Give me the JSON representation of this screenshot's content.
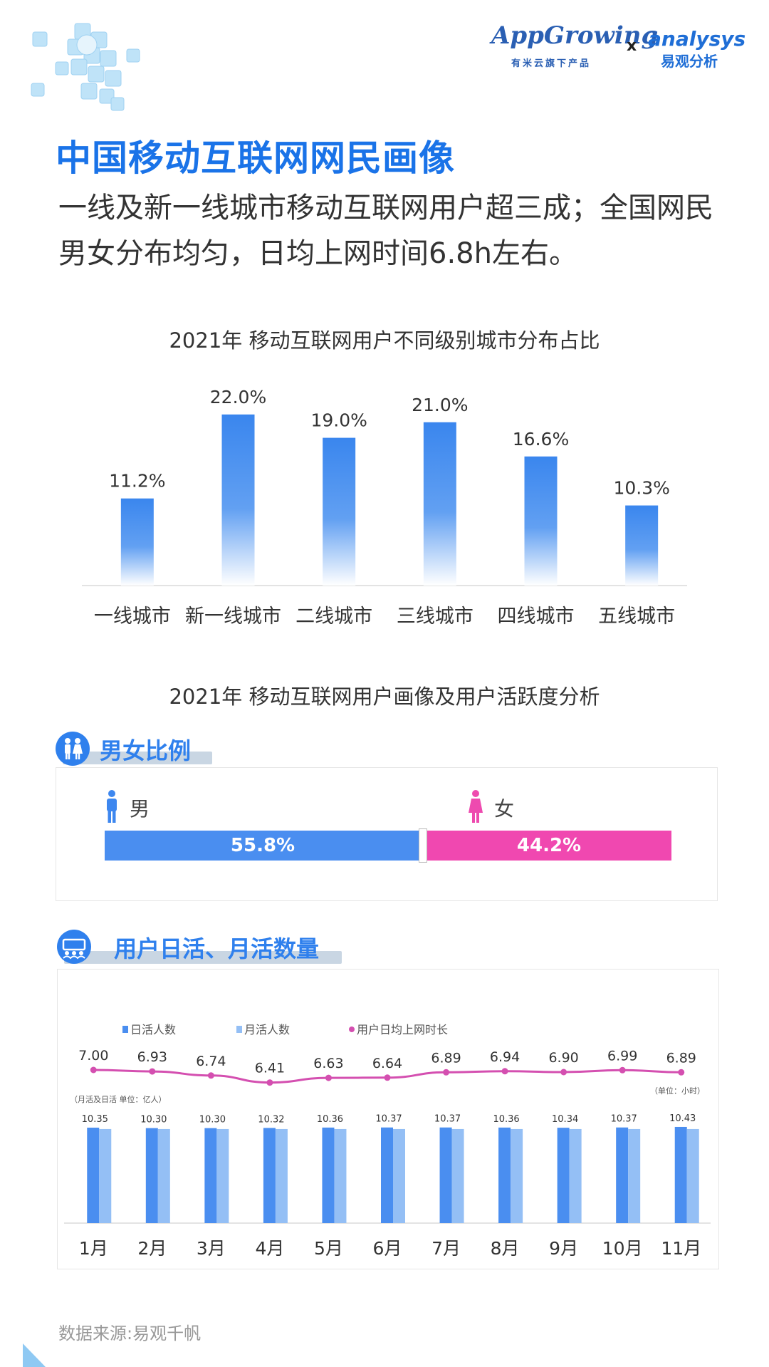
{
  "header": {
    "logo_app_name": "AppGrowing",
    "logo_app_sub": "有米云旗下产品",
    "logo_x": "x",
    "logo_an_name": "analysys",
    "logo_an_sub": "易观分析"
  },
  "title": "中国移动互联网网民画像",
  "subtitle": "一线及新一线城市移动互联网用户超三成；全国网民男女分布均匀，日均上网时间6.8h左右。",
  "colors": {
    "accent": "#1a73e8",
    "male": "#4a8ef0",
    "female": "#f048b0",
    "dau": "#4a8ef0",
    "mau": "#94bff5",
    "line": "#d44fb0"
  },
  "gender_section": {
    "title": "男女比例",
    "male_label": "男",
    "female_label": "女",
    "male_value": 55.8,
    "male_text": "55.8%",
    "female_value": 44.2,
    "female_text": "44.2%"
  },
  "activity_section": {
    "title": "用户日活、月活数量"
  },
  "source": "数据来源:易观千帆",
  "chart_data": [
    {
      "type": "bar",
      "title": "2021年 移动互联网用户不同级别城市分布占比",
      "categories": [
        "一线城市",
        "新一线城市",
        "二线城市",
        "三线城市",
        "四线城市",
        "五线城市"
      ],
      "values": [
        11.2,
        22.0,
        19.0,
        21.0,
        16.6,
        10.3
      ],
      "value_labels": [
        "11.2%",
        "22.0%",
        "19.0%",
        "21.0%",
        "16.6%",
        "10.3%"
      ],
      "unit": "%",
      "ylim": [
        0,
        24
      ]
    },
    {
      "type": "bar",
      "title": "2021年 移动互联网用户画像及用户活跃度分析",
      "categories": [
        "1月",
        "2月",
        "3月",
        "4月",
        "5月",
        "6月",
        "7月",
        "8月",
        "9月",
        "10月",
        "11月"
      ],
      "series": [
        {
          "name": "日活人数",
          "type": "bar",
          "values": [
            10.35,
            10.3,
            10.3,
            10.32,
            10.36,
            10.37,
            10.37,
            10.36,
            10.34,
            10.37,
            10.43
          ]
        },
        {
          "name": "月活人数",
          "type": "bar",
          "values": [
            10.2,
            10.2,
            10.2,
            10.2,
            10.2,
            10.2,
            10.2,
            10.2,
            10.2,
            10.2,
            10.2
          ]
        },
        {
          "name": "用户日均上网时长",
          "type": "line",
          "values": [
            7.0,
            6.93,
            6.74,
            6.41,
            6.63,
            6.64,
            6.89,
            6.94,
            6.9,
            6.99,
            6.89
          ]
        }
      ],
      "bar_value_labels": [
        "10.35",
        "10.30",
        "10.30",
        "10.32",
        "10.36",
        "10.37",
        "10.37",
        "10.36",
        "10.34",
        "10.37",
        "10.43"
      ],
      "line_value_labels": [
        "7.00",
        "6.93",
        "6.74",
        "6.41",
        "6.63",
        "6.64",
        "6.89",
        "6.94",
        "6.90",
        "6.99",
        "6.89"
      ],
      "left_unit_note": "（月活及日活 单位：亿人）",
      "right_unit_note": "（单位：小时）",
      "legend": "top-left"
    }
  ]
}
